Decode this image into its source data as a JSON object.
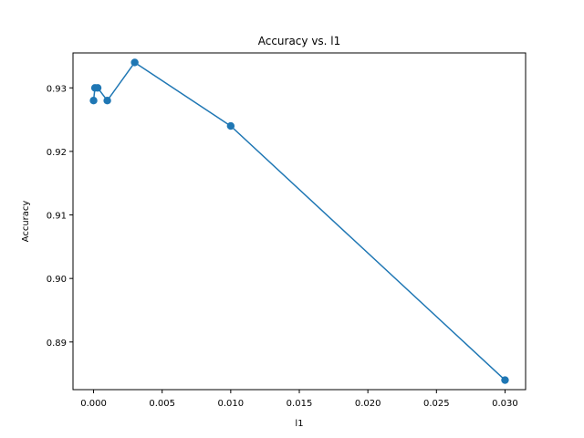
{
  "chart_data": {
    "type": "line",
    "title": "Accuracy vs. l1",
    "xlabel": "l1",
    "ylabel": "Accuracy",
    "x": [
      0,
      0.0001,
      0.0003,
      0.001,
      0.003,
      0.01,
      0.03
    ],
    "series": [
      {
        "values": [
          0.928,
          0.93,
          0.93,
          0.928,
          0.934,
          0.924,
          0.884
        ],
        "color": "#1f77b4",
        "marker": "circle"
      }
    ],
    "xlim": [
      -0.0015,
      0.0315
    ],
    "ylim": [
      0.8825,
      0.9355
    ],
    "xticks": [
      0.0,
      0.005,
      0.01,
      0.015,
      0.02,
      0.025,
      0.03
    ],
    "xtick_labels": [
      "0.000",
      "0.005",
      "0.010",
      "0.015",
      "0.020",
      "0.025",
      "0.030"
    ],
    "yticks": [
      0.89,
      0.9,
      0.91,
      0.92,
      0.93
    ],
    "ytick_labels": [
      "0.89",
      "0.90",
      "0.91",
      "0.92",
      "0.93"
    ],
    "grid": false,
    "legend": "none"
  }
}
